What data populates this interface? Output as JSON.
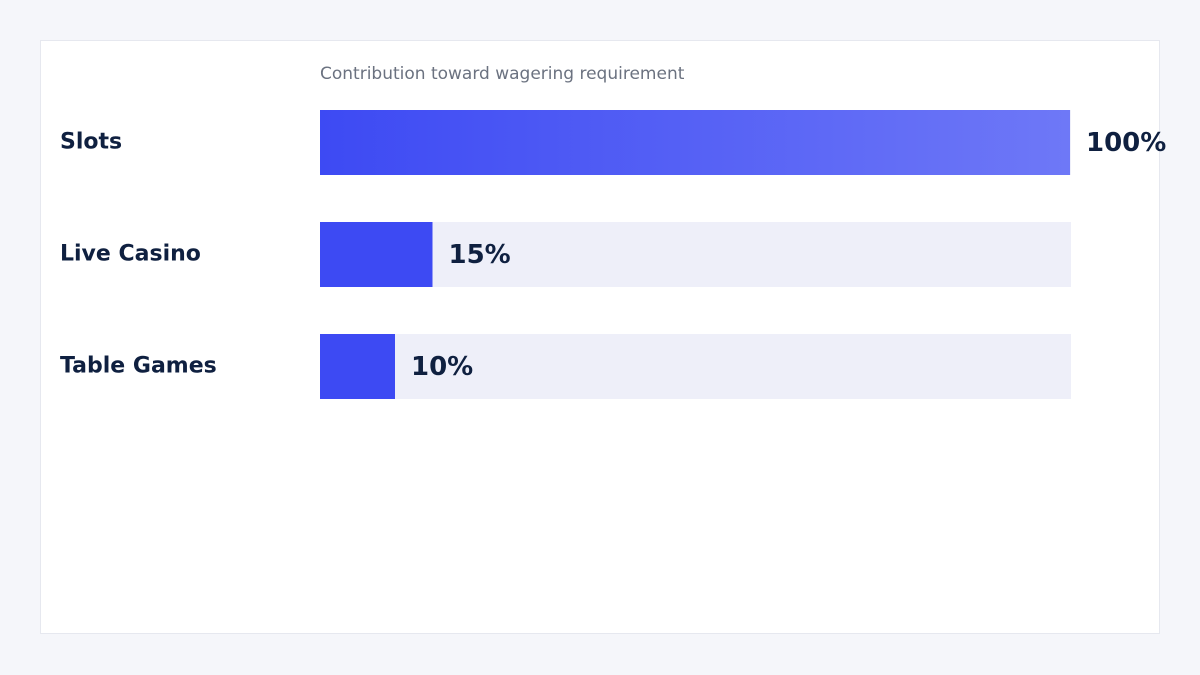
{
  "chart_data": {
    "type": "bar",
    "orientation": "horizontal",
    "subtitle": "Contribution toward wagering requirement",
    "categories": [
      "Slots",
      "Live Casino",
      "Table Games"
    ],
    "values": [
      100,
      15,
      10
    ],
    "value_labels": [
      "100%",
      "15%",
      "10%"
    ],
    "xlim": [
      0,
      100
    ],
    "colors": [
      "#3d4af3",
      "#3d4af3",
      "#3d4af3"
    ],
    "gradient_end": [
      "#6e78f7",
      null,
      null
    ],
    "track_color": "#eeeff9"
  }
}
